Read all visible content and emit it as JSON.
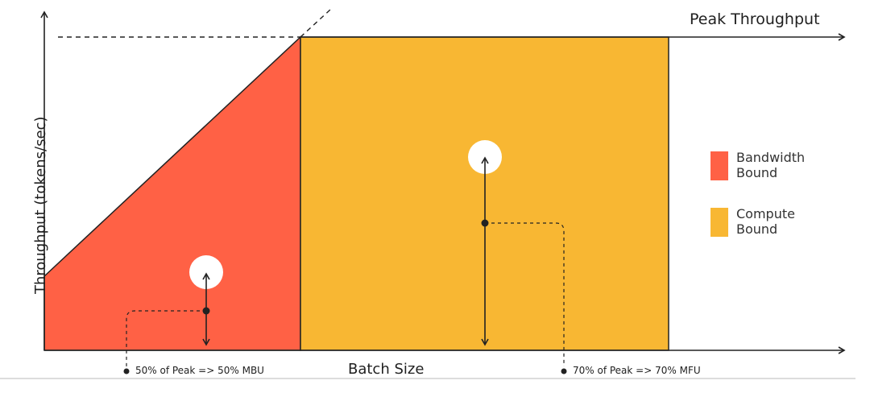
{
  "title": "Peak Throughput",
  "y_axis_label": "Throughput (tokens/sec)",
  "x_axis_label": "Batch Size",
  "annotations": [
    "50% of Peak => 50% MBU",
    "70% of Peak => 70% MFU"
  ],
  "legend": [
    {
      "label": "Bandwidth Bound",
      "color": "#ff6145"
    },
    {
      "label": "Compute Bound",
      "color": "#f8b733"
    }
  ]
}
